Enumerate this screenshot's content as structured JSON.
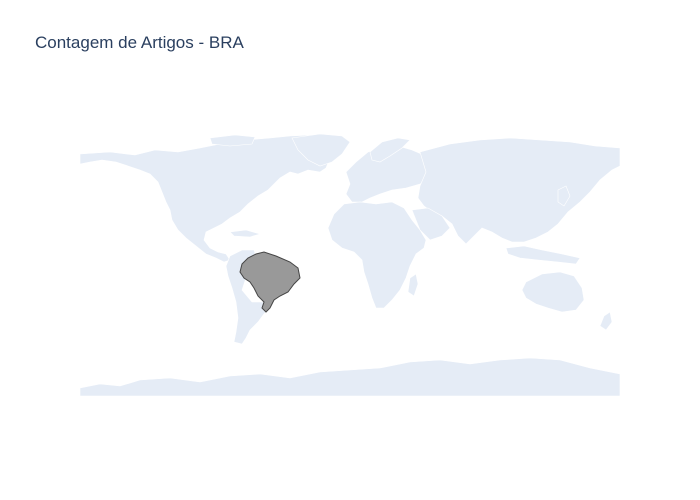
{
  "chart_data": {
    "type": "choropleth",
    "title": "Contagem de Artigos - BRA",
    "projection": "equirectangular",
    "land_color": "#E5ECF6",
    "locations": [
      "BRA"
    ],
    "highlight_color": "#999999",
    "highlight_border_color": "#444444"
  }
}
